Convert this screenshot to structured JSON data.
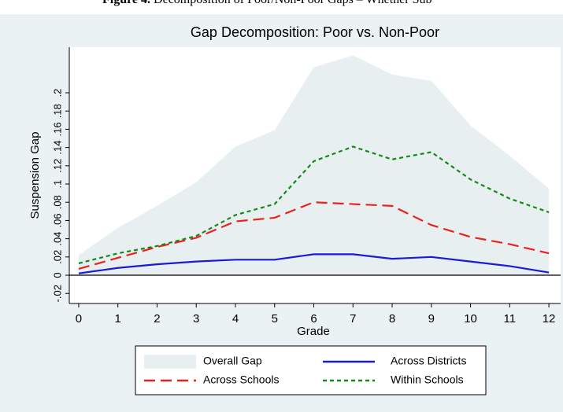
{
  "caption": {
    "label": "Figure 4.",
    "text": "Decomposition of Poor/Non-Poor Gaps – Whether Sub"
  },
  "chart_data": {
    "type": "line",
    "title": "Gap Decomposition: Poor vs. Non-Poor",
    "x_label": "Grade",
    "y_label": "Suspension Gap",
    "x": [
      0,
      1,
      2,
      3,
      4,
      5,
      6,
      7,
      8,
      9,
      10,
      11,
      12
    ],
    "xlim": [
      -0.24,
      12.3
    ],
    "xticks": [
      0,
      1,
      2,
      3,
      4,
      5,
      6,
      7,
      8,
      9,
      10,
      11,
      12
    ],
    "ylim": [
      -0.031,
      0.25
    ],
    "yticks": [
      {
        "value": -0.02,
        "label": "-.02"
      },
      0,
      {
        "value": 0.02,
        "label": ".02"
      },
      {
        "value": 0.04,
        "label": ".04"
      },
      {
        "value": 0.06,
        "label": ".06"
      },
      {
        "value": 0.08,
        "label": ".08"
      },
      {
        "value": 0.1,
        "label": ".1"
      },
      {
        "value": 0.12,
        "label": ".12"
      },
      {
        "value": 0.14,
        "label": ".14"
      },
      {
        "value": 0.16,
        "label": ".16"
      },
      {
        "value": 0.18,
        "label": ".18"
      },
      {
        "value": 0.2,
        "label": ".2"
      }
    ],
    "reference_line": 0,
    "series": [
      {
        "name": "Overall Gap",
        "style": "area",
        "color": "#e8eff1",
        "values": [
          0.022,
          0.052,
          0.076,
          0.102,
          0.141,
          0.159,
          0.228,
          0.241,
          0.22,
          0.213,
          0.164,
          0.131,
          0.095
        ]
      },
      {
        "name": "Across Districts",
        "style": "solid",
        "color": "#1a1adb",
        "values": [
          0.002,
          0.008,
          0.012,
          0.015,
          0.017,
          0.017,
          0.023,
          0.023,
          0.018,
          0.02,
          0.015,
          0.01,
          0.003
        ]
      },
      {
        "name": "Across Schools",
        "style": "longdash",
        "color": "#e8221e",
        "values": [
          0.007,
          0.019,
          0.031,
          0.041,
          0.059,
          0.063,
          0.08,
          0.078,
          0.076,
          0.055,
          0.042,
          0.034,
          0.024
        ]
      },
      {
        "name": "Within Schools",
        "style": "shortdash",
        "color": "#138a13",
        "values": [
          0.013,
          0.024,
          0.032,
          0.043,
          0.066,
          0.078,
          0.125,
          0.141,
          0.127,
          0.135,
          0.105,
          0.084,
          0.069
        ]
      }
    ]
  }
}
